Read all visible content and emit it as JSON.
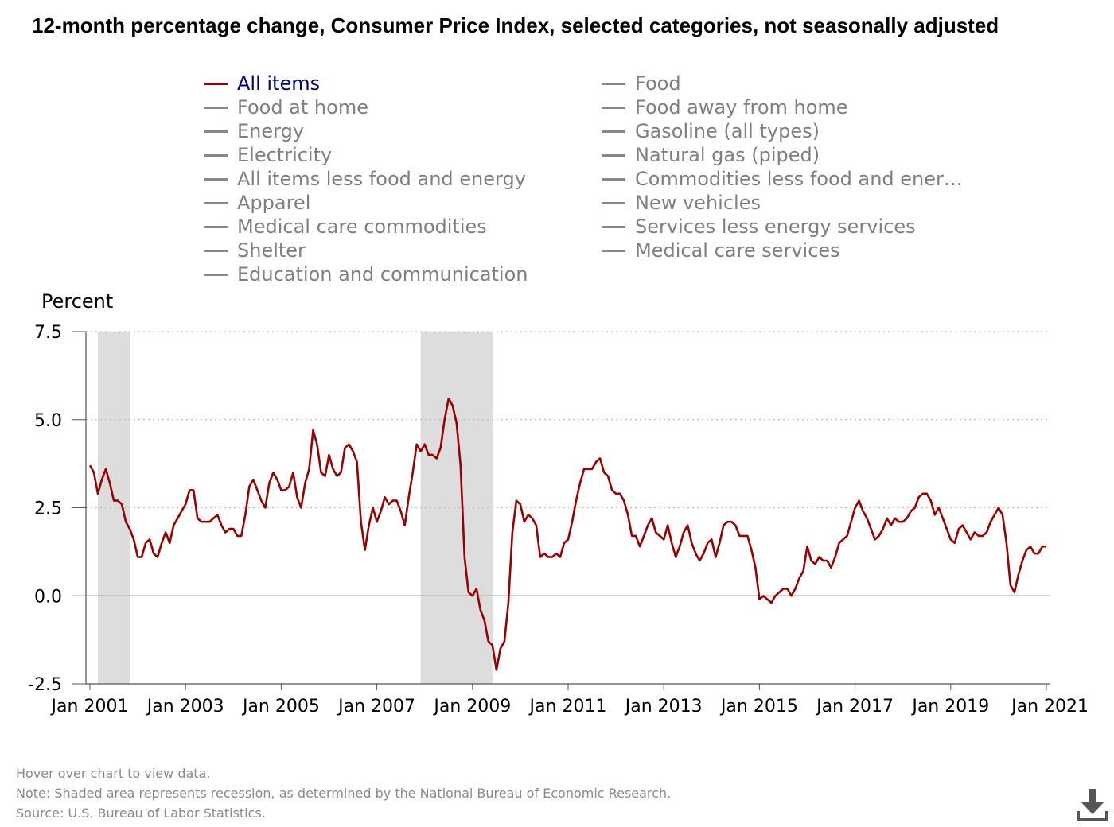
{
  "chart_data": {
    "type": "line",
    "title": "12-month percentage change, Consumer Price Index, selected categories, not seasonally adjusted",
    "ylabel": "Percent",
    "ylim": [
      -2.5,
      7.5
    ],
    "yticks": [
      "7.5",
      "5.0",
      "2.5",
      "0.0",
      "-2.5"
    ],
    "ytick_values": [
      7.5,
      5.0,
      2.5,
      0.0,
      -2.5
    ],
    "xlim": [
      "2000-12",
      "2021-02"
    ],
    "xticks": [
      {
        "label": "Jan 2001",
        "date": "2001-01"
      },
      {
        "label": "Jan 2003",
        "date": "2003-01"
      },
      {
        "label": "Jan 2005",
        "date": "2005-01"
      },
      {
        "label": "Jan 2007",
        "date": "2007-01"
      },
      {
        "label": "Jan 2009",
        "date": "2009-01"
      },
      {
        "label": "Jan 2011",
        "date": "2011-01"
      },
      {
        "label": "Jan 2013",
        "date": "2013-01"
      },
      {
        "label": "Jan 2015",
        "date": "2015-01"
      },
      {
        "label": "Jan 2017",
        "date": "2017-01"
      },
      {
        "label": "Jan 2019",
        "date": "2019-01"
      },
      {
        "label": "Jan 2021",
        "date": "2021-01"
      }
    ],
    "grid": true,
    "legend_placement": "top",
    "recessions": [
      {
        "start": "2001-03",
        "end": "2001-11"
      },
      {
        "start": "2007-12",
        "end": "2009-06"
      }
    ],
    "series": [
      {
        "name": "All items",
        "color": "#990000",
        "start": "2001-01",
        "values": [
          3.7,
          3.5,
          2.9,
          3.3,
          3.6,
          3.2,
          2.7,
          2.7,
          2.6,
          2.1,
          1.9,
          1.6,
          1.1,
          1.1,
          1.5,
          1.6,
          1.2,
          1.1,
          1.5,
          1.8,
          1.5,
          2.0,
          2.2,
          2.4,
          2.6,
          3.0,
          3.0,
          2.2,
          2.1,
          2.1,
          2.1,
          2.2,
          2.3,
          2.0,
          1.8,
          1.9,
          1.9,
          1.7,
          1.7,
          2.3,
          3.1,
          3.3,
          3.0,
          2.7,
          2.5,
          3.2,
          3.5,
          3.3,
          3.0,
          3.0,
          3.1,
          3.5,
          2.8,
          2.5,
          3.2,
          3.6,
          4.7,
          4.3,
          3.5,
          3.4,
          4.0,
          3.6,
          3.4,
          3.5,
          4.2,
          4.3,
          4.1,
          3.8,
          2.1,
          1.3,
          2.0,
          2.5,
          2.1,
          2.4,
          2.8,
          2.6,
          2.7,
          2.7,
          2.4,
          2.0,
          2.8,
          3.5,
          4.3,
          4.1,
          4.3,
          4.0,
          4.0,
          3.9,
          4.2,
          5.0,
          5.6,
          5.4,
          4.9,
          3.7,
          1.1,
          0.1,
          0.0,
          0.2,
          -0.4,
          -0.7,
          -1.3,
          -1.4,
          -2.1,
          -1.5,
          -1.3,
          -0.2,
          1.8,
          2.7,
          2.6,
          2.1,
          2.3,
          2.2,
          2.0,
          1.1,
          1.2,
          1.1,
          1.1,
          1.2,
          1.1,
          1.5,
          1.6,
          2.1,
          2.7,
          3.2,
          3.6,
          3.6,
          3.6,
          3.8,
          3.9,
          3.5,
          3.4,
          3.0,
          2.9,
          2.9,
          2.7,
          2.3,
          1.7,
          1.7,
          1.4,
          1.7,
          2.0,
          2.2,
          1.8,
          1.7,
          1.6,
          2.0,
          1.5,
          1.1,
          1.4,
          1.8,
          2.0,
          1.5,
          1.2,
          1.0,
          1.2,
          1.5,
          1.6,
          1.1,
          1.5,
          2.0,
          2.1,
          2.1,
          2.0,
          1.7,
          1.7,
          1.7,
          1.3,
          0.8,
          -0.1,
          0.0,
          -0.1,
          -0.2,
          0.0,
          0.1,
          0.2,
          0.2,
          0.0,
          0.2,
          0.5,
          0.7,
          1.4,
          1.0,
          0.9,
          1.1,
          1.0,
          1.0,
          0.8,
          1.1,
          1.5,
          1.6,
          1.7,
          2.1,
          2.5,
          2.7,
          2.4,
          2.2,
          1.9,
          1.6,
          1.7,
          1.9,
          2.2,
          2.0,
          2.2,
          2.1,
          2.1,
          2.2,
          2.4,
          2.5,
          2.8,
          2.9,
          2.9,
          2.7,
          2.3,
          2.5,
          2.2,
          1.9,
          1.6,
          1.5,
          1.9,
          2.0,
          1.8,
          1.6,
          1.8,
          1.7,
          1.7,
          1.8,
          2.1,
          2.3,
          2.5,
          2.3,
          1.5,
          0.3,
          0.1,
          0.6,
          1.0,
          1.3,
          1.4,
          1.2,
          1.2,
          1.4,
          1.4
        ]
      }
    ]
  },
  "legend": {
    "items": [
      {
        "label": "All items",
        "active": true
      },
      {
        "label": "Food at home",
        "active": false
      },
      {
        "label": "Energy",
        "active": false
      },
      {
        "label": "Electricity",
        "active": false
      },
      {
        "label": "All items less food and energy",
        "active": false
      },
      {
        "label": "Apparel",
        "active": false
      },
      {
        "label": "Medical care commodities",
        "active": false
      },
      {
        "label": "Shelter",
        "active": false
      },
      {
        "label": "Education and communication",
        "active": false
      },
      {
        "label": "Food",
        "active": false
      },
      {
        "label": "Food away from home",
        "active": false
      },
      {
        "label": "Gasoline (all types)",
        "active": false
      },
      {
        "label": "Natural gas (piped)",
        "active": false
      },
      {
        "label": "Commodities less food and ener…",
        "active": false
      },
      {
        "label": "New vehicles",
        "active": false
      },
      {
        "label": "Services less energy services",
        "active": false
      },
      {
        "label": "Medical care services",
        "active": false
      }
    ],
    "active_text_color": "#000080",
    "inactive_text_color": "#7f7f7f",
    "inactive_swatch_color": "#888888"
  },
  "footer": {
    "hover_hint": "Hover over chart to view data.",
    "note": "Note: Shaded area represents recession, as determined by the National Bureau of Economic Research.",
    "source": "Source: U.S. Bureau of Labor Statistics."
  },
  "download": {
    "icon": "download-icon"
  },
  "colors": {
    "recession_shade": "#dddddd",
    "gridline": "#bbbbbb",
    "axis": "#555555"
  }
}
